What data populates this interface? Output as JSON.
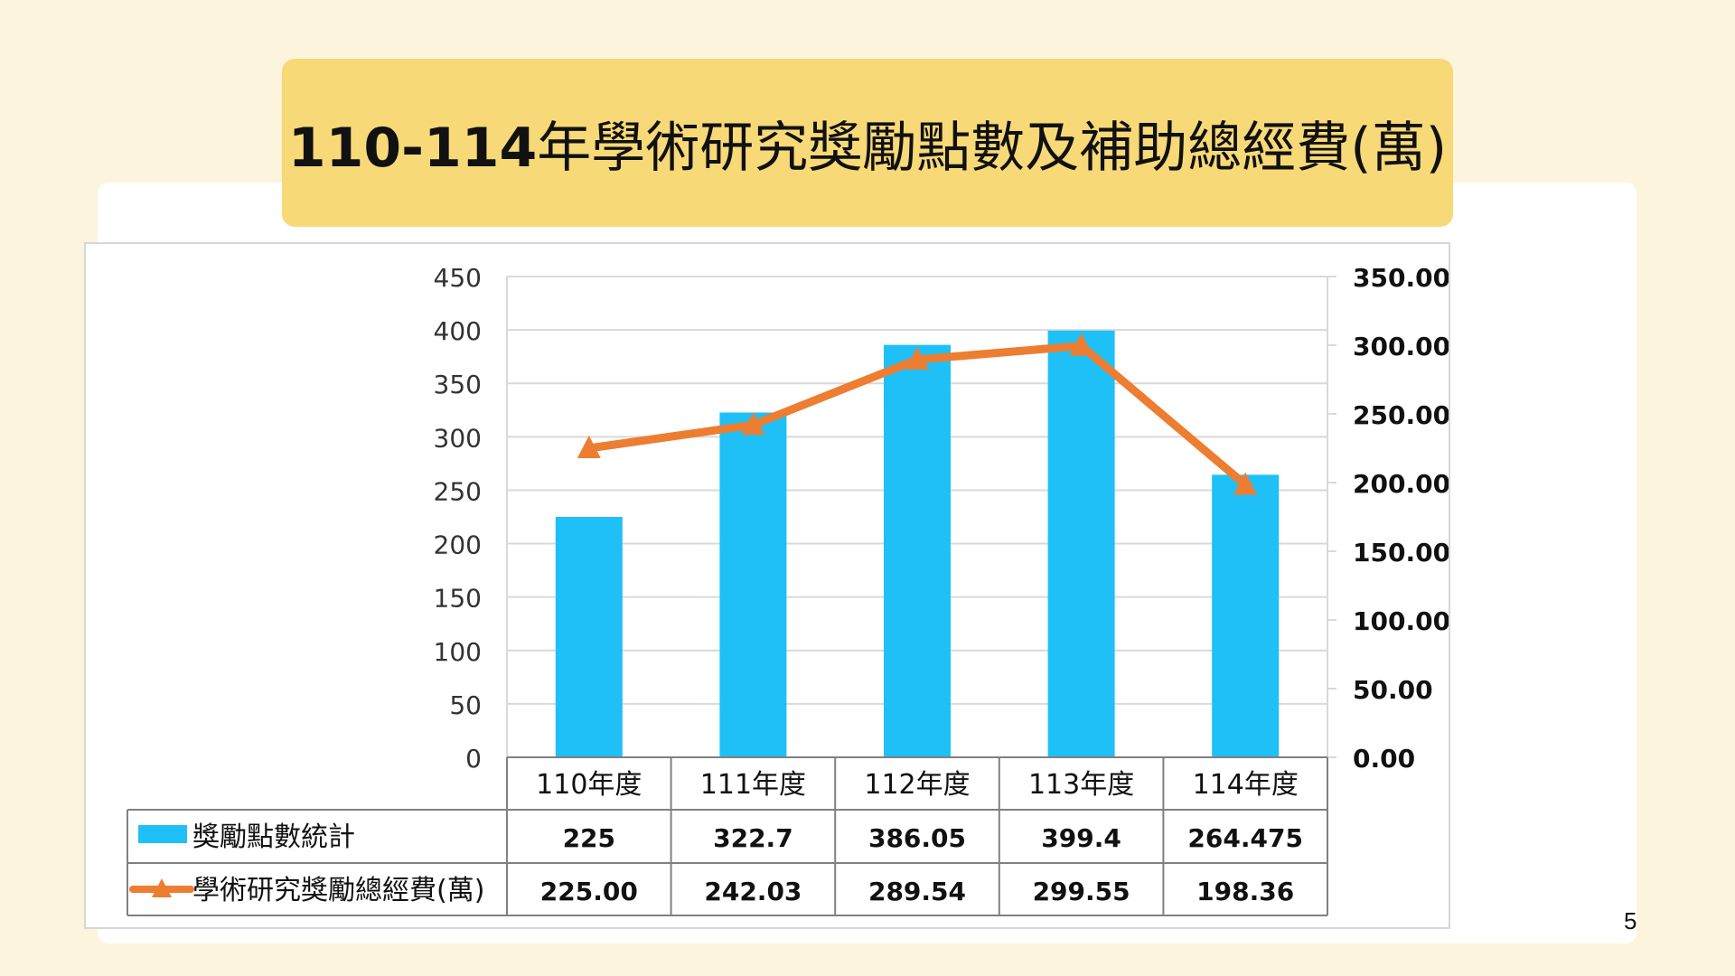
{
  "slide": {
    "title_bold": "110-114",
    "title_rest": "年學術研究獎勵點數及補助總經費(萬)",
    "page_number": "5"
  },
  "colors": {
    "background": "#fdf4dd",
    "title_box": "#f8d978",
    "bar": "#1ec0f7",
    "line": "#ed7d31",
    "grid": "#d9d9d9",
    "table_border": "#808080"
  },
  "chart_data": {
    "type": "bar",
    "categories": [
      "110年度",
      "111年度",
      "112年度",
      "113年度",
      "114年度"
    ],
    "series": [
      {
        "name": "獎勵點數統計",
        "type": "bar",
        "axis": "left",
        "values": [
          225,
          322.7,
          386.05,
          399.4,
          264.475
        ],
        "labels": [
          "225",
          "322.7",
          "386.05",
          "399.4",
          "264.475"
        ]
      },
      {
        "name": "學術研究獎勵總經費(萬)",
        "type": "line",
        "axis": "right",
        "marker": "triangle",
        "values": [
          225.0,
          242.03,
          289.54,
          299.55,
          198.36
        ],
        "labels": [
          "225.00",
          "242.03",
          "289.54",
          "299.55",
          "198.36"
        ]
      }
    ],
    "y_left": {
      "ylim": [
        0,
        450
      ],
      "ticks": [
        "0",
        "50",
        "100",
        "150",
        "200",
        "250",
        "300",
        "350",
        "400",
        "450"
      ]
    },
    "y_right": {
      "ylim": [
        0,
        350
      ],
      "ticks": [
        "0.00",
        "50.00",
        "100.00",
        "150.00",
        "200.00",
        "250.00",
        "300.00",
        "350.00"
      ]
    },
    "grid": true,
    "legend": "data-table"
  }
}
